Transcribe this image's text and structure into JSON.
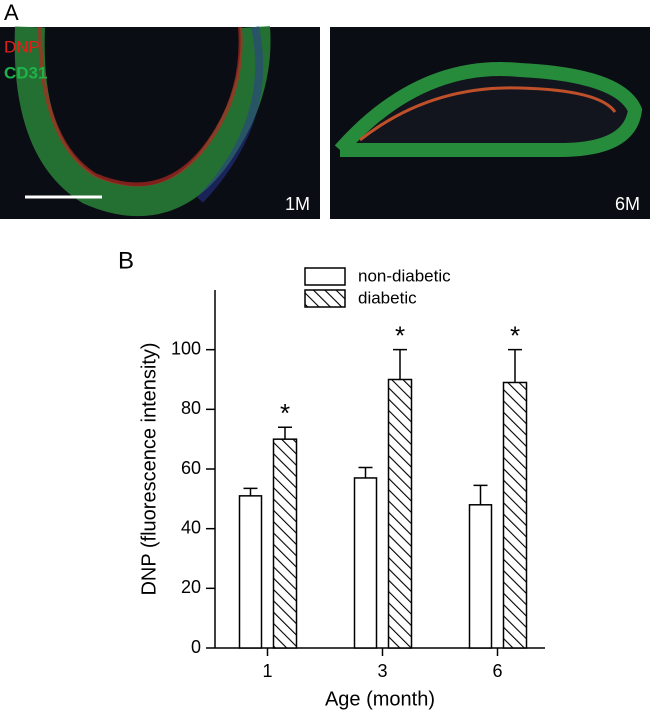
{
  "panel_a": {
    "label": "A",
    "stains": [
      {
        "name": "DNP",
        "color": "#e0201a"
      },
      {
        "name": "CD31",
        "color": "#1fb24a"
      }
    ],
    "image_labels": [
      "1M",
      "6M"
    ]
  },
  "chart_data": {
    "type": "bar",
    "panel_label": "B",
    "xlabel": "Age (month)",
    "ylabel": "DNP (fluorescence intensity)",
    "categories": [
      "1",
      "3",
      "6"
    ],
    "series": [
      {
        "name": "non-diabetic",
        "color": "#ffffff",
        "hatch": false,
        "values": [
          51,
          57,
          48
        ],
        "errors": [
          2.5,
          3.5,
          6.5
        ]
      },
      {
        "name": "diabetic",
        "color": "#ffffff",
        "hatch": true,
        "values": [
          70,
          90,
          89
        ],
        "errors": [
          4,
          10,
          11
        ],
        "significance": [
          "*",
          "*",
          "*"
        ]
      }
    ],
    "ylim": [
      0,
      120
    ],
    "yticks": [
      0,
      20,
      40,
      60,
      80,
      100
    ],
    "grid": false,
    "legend": "top"
  }
}
